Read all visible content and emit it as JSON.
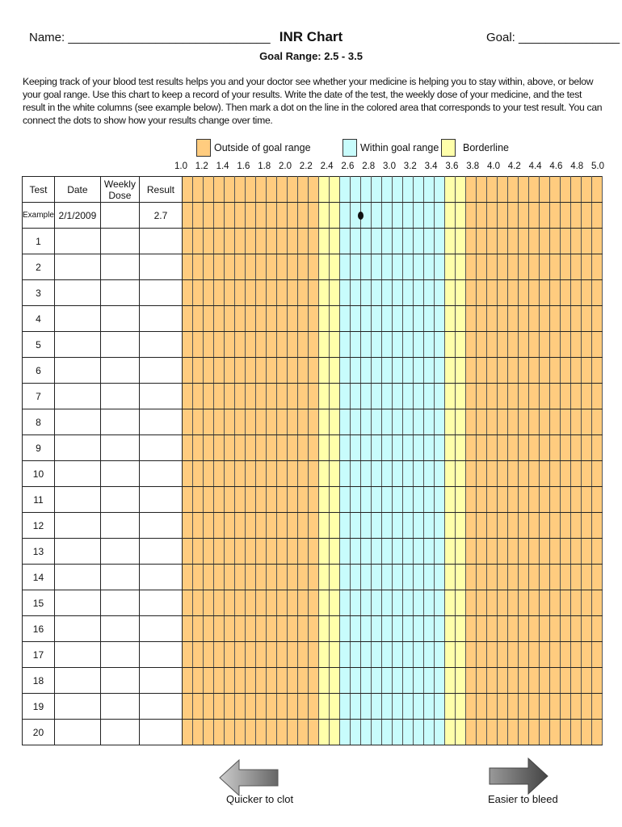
{
  "header": {
    "name_label": "Name: ______________________________",
    "title": "INR Chart",
    "goal_label": "Goal: _______________",
    "subtitle": "Goal Range: 2.5 - 3.5"
  },
  "intro": "Keeping track of your blood test results helps you and your doctor see whether your medicine is helping you to stay within, above, or below your goal range. Use this chart to keep a record of your results.  Write the date of the test, the weekly dose of your medicine, and the test result in the white columns (see example below). Then mark a dot on the line in the colored area that corresponds to your test result. You can connect the dots to show how your results change over time.",
  "legend": [
    {
      "label": "Outside of goal range",
      "color": "#FFCC7F"
    },
    {
      "label": "Within goal range",
      "color": "#C8FCFC"
    },
    {
      "label": "Borderline",
      "color": "#FFFFAA"
    }
  ],
  "scale_ticks": [
    "1.0",
    "1.2",
    "1.4",
    "1.6",
    "1.8",
    "2.0",
    "2.2",
    "2.4",
    "2.6",
    "2.8",
    "3.0",
    "3.2",
    "3.4",
    "3.6",
    "3.8",
    "4.0",
    "4.2",
    "4.4",
    "4.6",
    "4.8",
    "5.0"
  ],
  "columns": {
    "test": "Test",
    "date": "Date",
    "dose": "Weekly Dose",
    "result": "Result"
  },
  "example": {
    "test": "Example",
    "date": "2/1/2009",
    "dose": "",
    "result": "2.7",
    "plotted_value": 2.7
  },
  "rows": [
    "1",
    "2",
    "3",
    "4",
    "5",
    "6",
    "7",
    "8",
    "9",
    "10",
    "11",
    "12",
    "13",
    "14",
    "15",
    "16",
    "17",
    "18",
    "19",
    "20"
  ],
  "zones": {
    "borderline_low": [
      2.3,
      2.5
    ],
    "goal": [
      2.5,
      3.5
    ],
    "borderline_high": [
      3.5,
      3.7
    ]
  },
  "footer": {
    "left_arrow": "Quicker to clot",
    "right_arrow": "Easier to bleed"
  }
}
